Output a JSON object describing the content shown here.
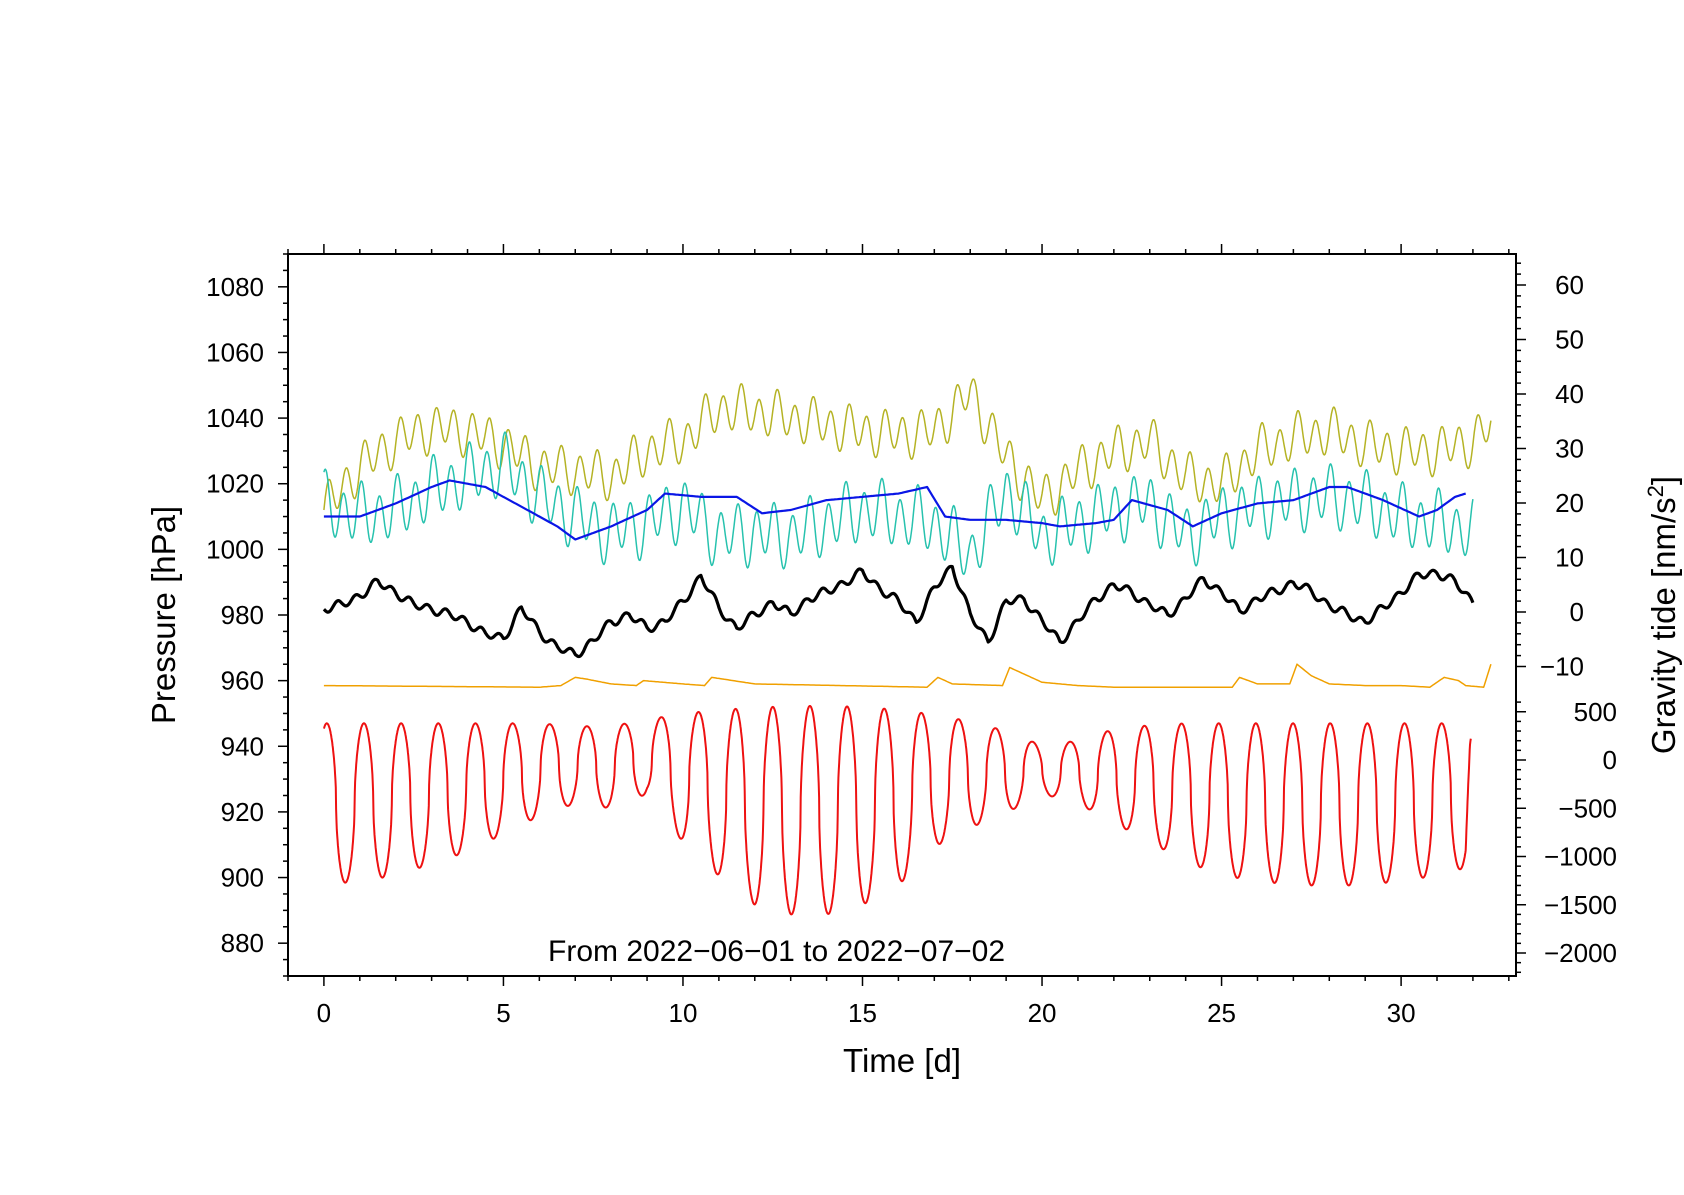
{
  "chart_data": {
    "type": "line",
    "xlabel": "Time [d]",
    "ylabel_left": "Pressure [hPa]",
    "ylabel_right": "Gravity tide [nm/s",
    "ylabel_right_sup": "2",
    "ylabel_right_end": "]",
    "annotation": "From 2022−06−01 to 2022−07−02",
    "xlim": [
      -1,
      33.2
    ],
    "ylim_left": [
      870,
      1090
    ],
    "ylim_right_upper": [
      -25,
      65
    ],
    "ylim_right_lower": [
      -2200,
      1000
    ],
    "x_ticks": [
      0,
      5,
      10,
      15,
      20,
      25,
      30
    ],
    "x_tick_labels": [
      "0",
      "5",
      "10",
      "15",
      "20",
      "25",
      "30"
    ],
    "left_ticks": [
      880,
      900,
      920,
      940,
      960,
      980,
      1000,
      1020,
      1040,
      1060,
      1080
    ],
    "left_tick_labels": [
      "880",
      "900",
      "920",
      "940",
      "960",
      "980",
      "1000",
      "1020",
      "1040",
      "1060",
      "1080"
    ],
    "right_upper_ticks": [
      -10,
      0,
      10,
      20,
      30,
      40,
      50,
      60
    ],
    "right_upper_tick_labels": [
      "−10",
      "0",
      "10",
      "20",
      "30",
      "40",
      "50",
      "60"
    ],
    "right_lower_ticks": [
      -2000,
      -1500,
      -1000,
      -500,
      0,
      500
    ],
    "right_lower_tick_labels": [
      "−2000",
      "−1500",
      "−1000",
      "−500",
      "0",
      "500"
    ],
    "series": [
      {
        "name": "olive",
        "color": "#b5b325",
        "x": [
          0.0,
          1.0,
          2.0,
          3.0,
          4.0,
          5.0,
          6.0,
          7.0,
          8.0,
          9.0,
          10.0,
          11.0,
          12.0,
          13.0,
          14.0,
          15.0,
          16.0,
          17.0,
          18.0,
          19.0,
          20.0,
          21.0,
          22.0,
          23.0,
          24.0,
          25.0,
          26.0,
          27.0,
          28.0,
          29.0,
          30.0,
          31.0,
          32.0,
          32.5
        ],
        "y": [
          1012,
          1025,
          1033,
          1037,
          1036,
          1032,
          1025,
          1024,
          1022,
          1030,
          1033,
          1043,
          1042,
          1040,
          1038,
          1036,
          1035,
          1036,
          1048,
          1028,
          1015,
          1024,
          1030,
          1033,
          1022,
          1020,
          1030,
          1034,
          1036,
          1032,
          1030,
          1030,
          1033,
          1038
        ],
        "amp": 6,
        "period": 0.5
      },
      {
        "name": "teal",
        "color": "#27c2ae",
        "x": [
          0.0,
          1.0,
          2.0,
          3.0,
          4.0,
          5.0,
          6.0,
          7.0,
          8.0,
          9.0,
          10.0,
          11.0,
          12.0,
          13.0,
          14.0,
          15.0,
          16.0,
          17.0,
          18.0,
          19.0,
          20.0,
          21.0,
          22.0,
          23.0,
          24.0,
          25.0,
          26.0,
          27.0,
          28.0,
          29.0,
          30.0,
          31.0,
          32.0
        ],
        "y": [
          1014,
          1010,
          1012,
          1018,
          1022,
          1026,
          1016,
          1010,
          1005,
          1008,
          1013,
          1004,
          1005,
          1004,
          1008,
          1012,
          1010,
          1008,
          998,
          1018,
          1004,
          1008,
          1012,
          1014,
          1004,
          1010,
          1013,
          1015,
          1016,
          1014,
          1010,
          1008,
          1006
        ],
        "amp": 8,
        "period": 0.5
      },
      {
        "name": "blue",
        "color": "#0a16e6",
        "x": [
          0.0,
          1.0,
          2.0,
          3.0,
          3.5,
          4.5,
          5.5,
          6.5,
          7.0,
          8.0,
          9.0,
          9.5,
          10.5,
          11.5,
          12.2,
          13.0,
          14.0,
          15.0,
          16.0,
          16.8,
          17.3,
          18.0,
          19.0,
          20.0,
          20.5,
          21.5,
          22.0,
          22.5,
          23.5,
          24.2,
          25.0,
          26.0,
          27.0,
          28.0,
          28.5,
          29.5,
          30.5,
          31.0,
          31.5,
          31.8
        ],
        "y": [
          1010,
          1010,
          1014,
          1019,
          1021,
          1019,
          1013,
          1007,
          1003,
          1007,
          1012,
          1017,
          1016,
          1016,
          1011,
          1012,
          1015,
          1016,
          1017,
          1019,
          1010,
          1009,
          1009,
          1008,
          1007,
          1008,
          1009,
          1015,
          1012,
          1007,
          1011,
          1014,
          1015,
          1019,
          1019,
          1015,
          1010,
          1012,
          1016,
          1017
        ],
        "amp": 0,
        "period": 1
      },
      {
        "name": "black",
        "color": "#000000",
        "x": [
          0.0,
          0.5,
          1.0,
          1.5,
          2.0,
          2.5,
          3.0,
          3.5,
          4.0,
          4.5,
          5.0,
          5.5,
          6.0,
          6.5,
          7.0,
          7.5,
          8.0,
          8.5,
          9.0,
          9.5,
          10.0,
          10.5,
          11.0,
          11.5,
          12.0,
          12.5,
          13.0,
          13.5,
          14.0,
          14.5,
          15.0,
          15.5,
          16.0,
          16.5,
          17.0,
          17.5,
          18.0,
          18.5,
          19.0,
          19.5,
          20.0,
          20.5,
          21.0,
          21.5,
          22.0,
          22.5,
          23.0,
          23.5,
          24.0,
          24.5,
          25.0,
          25.5,
          26.0,
          26.5,
          27.0,
          27.5,
          28.0,
          28.5,
          29.0,
          29.5,
          30.0,
          30.5,
          31.0,
          31.5,
          32.0
        ],
        "y": [
          982,
          983,
          986,
          990,
          987,
          983,
          982,
          980,
          978,
          974,
          973,
          982,
          975,
          970,
          968,
          972,
          978,
          980,
          976,
          978,
          984,
          992,
          982,
          976,
          980,
          984,
          980,
          985,
          987,
          990,
          993,
          988,
          984,
          978,
          988,
          995,
          980,
          972,
          984,
          985,
          978,
          972,
          978,
          985,
          989,
          987,
          983,
          980,
          985,
          991,
          987,
          981,
          985,
          987,
          990,
          987,
          983,
          980,
          978,
          982,
          987,
          992,
          993,
          990,
          984
        ],
        "amp": 1.2,
        "period": 0.5
      },
      {
        "name": "orange",
        "color": "#f0a000",
        "x": [
          0.0,
          6.0,
          6.6,
          7.0,
          7.3,
          8.0,
          8.7,
          8.9,
          10.0,
          10.6,
          10.8,
          12.0,
          16.8,
          17.1,
          17.5,
          18.9,
          19.1,
          19.5,
          20.0,
          21.0,
          22.0,
          25.3,
          25.5,
          26.0,
          26.9,
          27.1,
          27.5,
          28.0,
          29.0,
          30.0,
          30.8,
          31.2,
          31.6,
          31.8,
          32.3,
          32.5
        ],
        "y": [
          958.5,
          958,
          958.5,
          961,
          960.5,
          959,
          958.5,
          960,
          959,
          958.5,
          961,
          959,
          958,
          961,
          959,
          958.5,
          964,
          962,
          959.5,
          958.5,
          958,
          958,
          961,
          959,
          959,
          965,
          961.5,
          959,
          958.5,
          958.5,
          958,
          961,
          960,
          958.5,
          958,
          965
        ],
        "amp": 0,
        "period": 1
      },
      {
        "name": "red",
        "color": "#ee1111",
        "x": [
          0.0,
          2.0,
          4.0,
          6.0,
          7.0,
          8.0,
          9.0,
          10.0,
          11.0,
          12.0,
          13.0,
          14.0,
          15.0,
          16.0,
          17.0,
          18.0,
          19.0,
          20.0,
          21.0,
          22.0,
          23.0,
          24.0,
          25.0,
          26.0,
          27.0,
          28.0,
          29.0,
          30.0,
          31.0,
          31.95
        ],
        "y": [
          -1300,
          -1200,
          -950,
          -580,
          -450,
          -500,
          -350,
          -850,
          -1200,
          -1500,
          -1600,
          -1600,
          -1500,
          -1300,
          -900,
          -700,
          -550,
          -350,
          -450,
          -650,
          -850,
          -1050,
          -1200,
          -1250,
          -1300,
          -1300,
          -1300,
          -1250,
          -1200,
          -1100
        ],
        "top": [
          380,
          380,
          380,
          380,
          350,
          350,
          420,
          480,
          520,
          540,
          560,
          560,
          550,
          520,
          470,
          400,
          300,
          150,
          200,
          320,
          360,
          380,
          380,
          380,
          380,
          380,
          380,
          380,
          380,
          380
        ],
        "period": 1.035,
        "end_value": 240
      }
    ]
  }
}
